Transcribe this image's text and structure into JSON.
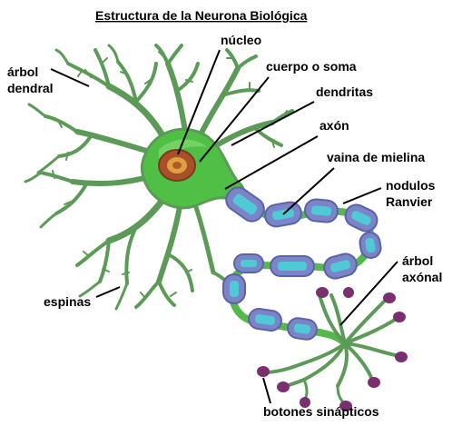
{
  "diagram": {
    "title": "Estructura de la Neurona Biológica",
    "labels": {
      "nucleo": "núcleo",
      "cuerpo": "cuerpo o soma",
      "arbol_dendral_1": "árbol",
      "arbol_dendral_2": "dendral",
      "dendritas": "dendritas",
      "axon": "axón",
      "vaina": "vaina de mielina",
      "nodulos_1": "nodulos",
      "nodulos_2": "Ranvier",
      "arbol_axonal_1": "árbol",
      "arbol_axonal_2": "axónal",
      "espinas": "espinas",
      "botones": "botones sinápticos"
    },
    "colors": {
      "soma": "#49c84a",
      "dendrite": "#5c9a57",
      "myelin": "#7c84c8",
      "myelin_core": "#4fc9d6",
      "nucleus": "#a8502a",
      "bouton": "#7a2f6e"
    }
  }
}
